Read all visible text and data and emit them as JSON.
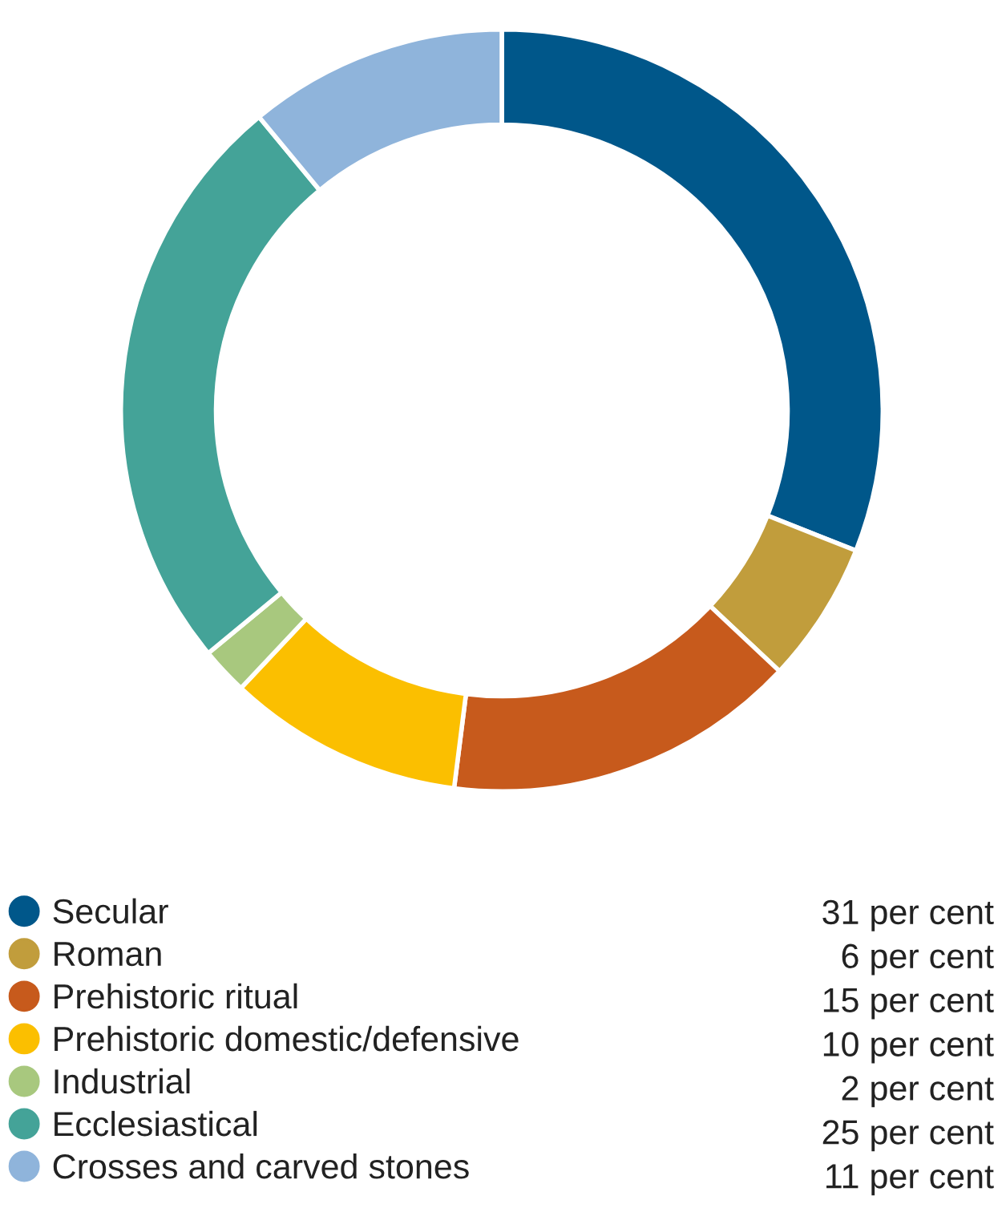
{
  "chart_data": {
    "type": "donut",
    "categories": [
      "Secular",
      "Roman",
      "Prehistoric ritual",
      "Prehistoric domestic/defensive",
      "Industrial",
      "Ecclesiastical",
      "Crosses and carved stones"
    ],
    "values": [
      31,
      6,
      15,
      10,
      2,
      25,
      11
    ],
    "colors": [
      "#00578a",
      "#c19d3c",
      "#c75a1c",
      "#fbbf00",
      "#a8c87e",
      "#44a398",
      "#8fb4db"
    ],
    "value_labels": [
      "31 per cent",
      "6 per cent",
      "15 per cent",
      "10 per cent",
      "2 per cent",
      "25 per cent",
      "11 per cent"
    ],
    "legend": "bottom"
  }
}
